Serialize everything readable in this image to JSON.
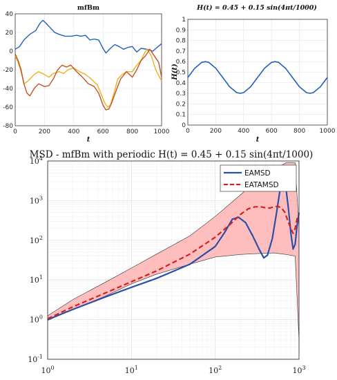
{
  "chart_data": [
    {
      "type": "line",
      "title": "mfBm",
      "xlabel": "t",
      "ylabel": "",
      "xlim": [
        0,
        1000
      ],
      "ylim": [
        -80,
        40
      ],
      "xticks": [
        0,
        200,
        400,
        600,
        800,
        1000
      ],
      "yticks": [
        -80,
        -60,
        -40,
        -20,
        0,
        20,
        40
      ],
      "grid": true,
      "series": [
        {
          "color": "#1f5fbd",
          "x": [
            0,
            30,
            60,
            100,
            140,
            170,
            190,
            210,
            240,
            270,
            300,
            340,
            380,
            420,
            450,
            480,
            510,
            540,
            570,
            600,
            620,
            650,
            680,
            710,
            740,
            770,
            800,
            830,
            860,
            900,
            940,
            970,
            1000
          ],
          "y": [
            2,
            5,
            12,
            18,
            22,
            30,
            33,
            30,
            25,
            20,
            18,
            16,
            16,
            17,
            16,
            17,
            12,
            13,
            12,
            3,
            -2,
            3,
            7,
            5,
            2,
            4,
            5,
            -1,
            3,
            2,
            0,
            4,
            8
          ]
        },
        {
          "color": "#e8b31c",
          "x": [
            0,
            20,
            40,
            60,
            80,
            100,
            130,
            160,
            200,
            230,
            260,
            300,
            330,
            360,
            400,
            440,
            480,
            520,
            560,
            590,
            610,
            630,
            650,
            680,
            700,
            730,
            760,
            800,
            830,
            860,
            880,
            900,
            930,
            960,
            1000
          ],
          "y": [
            -5,
            -12,
            -22,
            -35,
            -33,
            -30,
            -25,
            -22,
            -25,
            -28,
            -24,
            -22,
            -24,
            -20,
            -18,
            -22,
            -25,
            -30,
            -36,
            -47,
            -55,
            -60,
            -58,
            -42,
            -30,
            -25,
            -22,
            -22,
            -15,
            -10,
            -3,
            2,
            -5,
            -20,
            -32
          ]
        },
        {
          "color": "#c4511f",
          "x": [
            0,
            20,
            40,
            60,
            80,
            100,
            130,
            160,
            200,
            230,
            260,
            290,
            320,
            350,
            380,
            420,
            460,
            500,
            540,
            570,
            600,
            620,
            640,
            660,
            690,
            720,
            760,
            800,
            830,
            860,
            890,
            920,
            950,
            980,
            1000
          ],
          "y": [
            -3,
            -10,
            -20,
            -35,
            -45,
            -48,
            -40,
            -35,
            -38,
            -37,
            -30,
            -20,
            -15,
            -17,
            -15,
            -22,
            -28,
            -35,
            -38,
            -45,
            -58,
            -63,
            -62,
            -55,
            -42,
            -30,
            -22,
            -28,
            -20,
            -10,
            -5,
            2,
            -5,
            -12,
            -28
          ]
        }
      ]
    },
    {
      "type": "line",
      "title": "H(t) = 0.45 + 0.15 sin(4πt/1000)",
      "xlabel": "t",
      "ylabel": "H(t)",
      "xlim": [
        0,
        1000
      ],
      "ylim": [
        0,
        1
      ],
      "xticks": [
        0,
        200,
        400,
        600,
        800,
        1000
      ],
      "yticks": [
        0,
        0.1,
        0.2,
        0.3,
        0.4,
        0.5,
        0.6,
        0.7,
        0.8,
        0.9,
        1
      ],
      "grid": true,
      "series": [
        {
          "color": "#1f5fbd",
          "x": [
            0,
            50,
            100,
            125,
            150,
            200,
            250,
            300,
            350,
            375,
            400,
            450,
            500,
            550,
            600,
            625,
            650,
            700,
            750,
            800,
            850,
            875,
            900,
            950,
            1000
          ],
          "y": [
            0.45,
            0.538,
            0.593,
            0.6,
            0.593,
            0.538,
            0.45,
            0.362,
            0.307,
            0.3,
            0.307,
            0.362,
            0.45,
            0.538,
            0.593,
            0.6,
            0.593,
            0.538,
            0.45,
            0.362,
            0.307,
            0.3,
            0.307,
            0.362,
            0.45
          ]
        }
      ]
    },
    {
      "type": "line",
      "title": "MSD - mfBm with periodic H(t) = 0.45 + 0.15 sin(4πt/1000)",
      "xlabel": "",
      "ylabel": "",
      "xscale": "log",
      "yscale": "log",
      "xlim": [
        1,
        1000
      ],
      "ylim": [
        0.1,
        10000
      ],
      "xticks": [
        "10^0",
        "10^1",
        "10^2",
        "10^3"
      ],
      "yticks": [
        "10^-1",
        "10^0",
        "10^1",
        "10^2",
        "10^3",
        "10^4"
      ],
      "grid": true,
      "legend": "top-right",
      "band": {
        "color": "#ffb3b3",
        "x": [
          1,
          2,
          5,
          10,
          20,
          50,
          100,
          200,
          300,
          500,
          700,
          900,
          1000
        ],
        "lower": [
          0.95,
          1.8,
          4,
          8,
          14,
          25,
          38,
          44,
          46,
          48,
          44,
          40,
          0.3
        ],
        "upper": [
          1.25,
          3.2,
          9,
          20,
          45,
          130,
          400,
          1400,
          3000,
          6000,
          9000,
          9000,
          200
        ]
      },
      "series": [
        {
          "name": "EAMSD",
          "color": "#2b4ea8",
          "style": "solid",
          "x": [
            1,
            2,
            5,
            10,
            20,
            50,
            100,
            130,
            160,
            190,
            230,
            280,
            340,
            380,
            420,
            480,
            540,
            600,
            650,
            700,
            750,
            800,
            850,
            900,
            950,
            1000
          ],
          "y": [
            1.0,
            1.8,
            3.8,
            6.5,
            11,
            25,
            70,
            160,
            340,
            380,
            280,
            130,
            55,
            36,
            42,
            110,
            500,
            2200,
            3500,
            2000,
            600,
            150,
            60,
            80,
            250,
            500
          ]
        },
        {
          "name": "EATAMSD",
          "color": "#d42020",
          "style": "dashed",
          "x": [
            1,
            2,
            5,
            10,
            20,
            50,
            100,
            150,
            200,
            250,
            300,
            350,
            400,
            450,
            500,
            560,
            620,
            680,
            740,
            800,
            850,
            900,
            950,
            1000
          ],
          "y": [
            1.05,
            2.1,
            4.8,
            9,
            17,
            45,
            120,
            250,
            450,
            630,
            700,
            700,
            660,
            650,
            700,
            720,
            650,
            500,
            300,
            200,
            150,
            200,
            350,
            450
          ]
        }
      ]
    }
  ],
  "ticklabels": {
    "top_x": [
      "0",
      "200",
      "400",
      "600",
      "800",
      "1000"
    ],
    "tl_y": [
      "40",
      "20",
      "0",
      "-20",
      "-40",
      "-60",
      "-80"
    ],
    "tr_y": [
      "0",
      "0.1",
      "0.2",
      "0.3",
      "0.4",
      "0.5",
      "0.6",
      "0.7",
      "0.8",
      "0.9",
      "1"
    ],
    "bottom_x_mant": [
      "10",
      "10",
      "10",
      "10"
    ],
    "bottom_x_exp": [
      "0",
      "1",
      "2",
      "3"
    ],
    "bottom_y_mant": [
      "10",
      "10",
      "10",
      "10",
      "10",
      "10"
    ],
    "bottom_y_exp": [
      "-1",
      "0",
      "1",
      "2",
      "3",
      "4"
    ]
  }
}
